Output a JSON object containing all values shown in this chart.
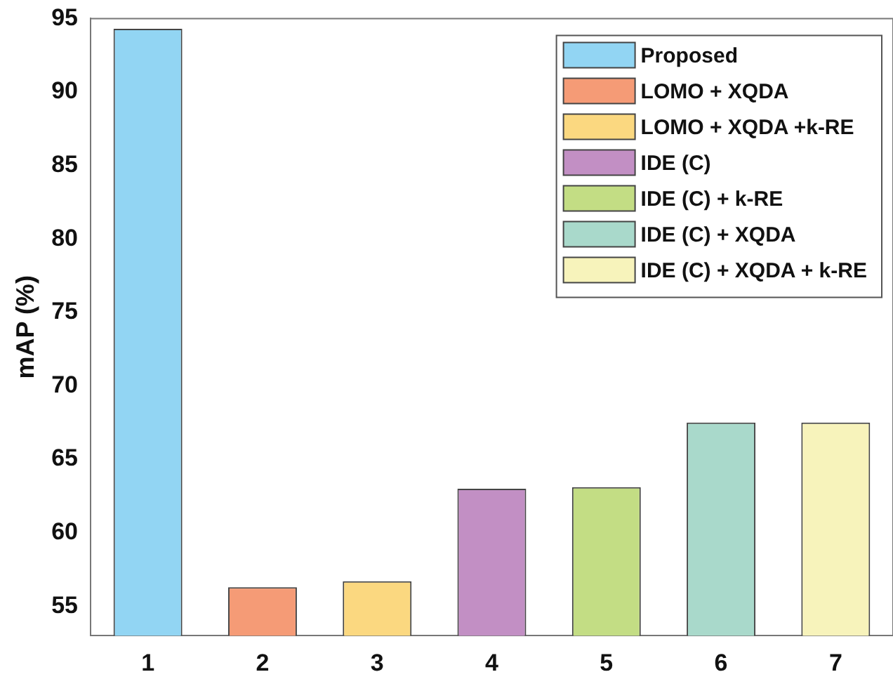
{
  "chart_data": {
    "type": "bar",
    "ylabel": "mAP (%)",
    "categories": [
      "1",
      "2",
      "3",
      "4",
      "5",
      "6",
      "7"
    ],
    "series": [
      {
        "name": "Proposed",
        "color": "#92d5f3",
        "values": [
          94.3,
          null,
          null,
          null,
          null,
          null,
          null
        ]
      },
      {
        "name": "LOMO + XQDA",
        "color": "#f59b76",
        "values": [
          null,
          56.3,
          null,
          null,
          null,
          null,
          null
        ]
      },
      {
        "name": "LOMO + XQDA +k-RE",
        "color": "#fbd880",
        "values": [
          null,
          null,
          56.7,
          null,
          null,
          null,
          null
        ]
      },
      {
        "name": "IDE (C)",
        "color": "#c28fc4",
        "values": [
          null,
          null,
          null,
          63.0,
          null,
          null,
          null
        ]
      },
      {
        "name": "IDE (C) + k-RE",
        "color": "#c3dd84",
        "values": [
          null,
          null,
          null,
          null,
          63.1,
          null,
          null
        ]
      },
      {
        "name": "IDE (C) + XQDA",
        "color": "#a9d9cb",
        "values": [
          null,
          null,
          null,
          null,
          null,
          67.5,
          null
        ]
      },
      {
        "name": "IDE (C) + XQDA + k-RE",
        "color": "#f7f3bb",
        "values": [
          null,
          null,
          null,
          null,
          null,
          null,
          67.5
        ]
      }
    ],
    "ylim": [
      53,
      95
    ],
    "yticks": [
      55,
      60,
      65,
      70,
      75,
      80,
      85,
      90,
      95
    ],
    "grid": false,
    "legend": "top right"
  }
}
